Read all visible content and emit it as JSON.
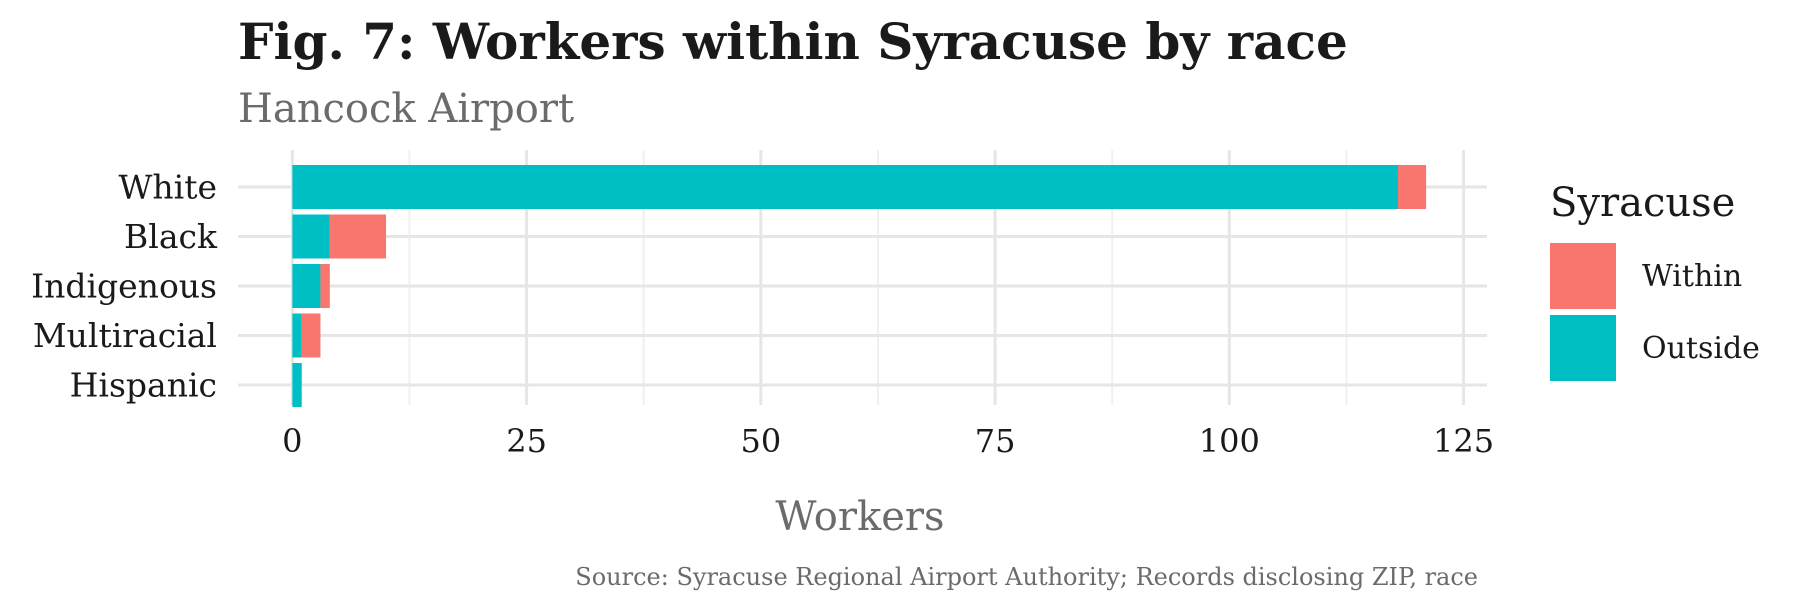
{
  "chart_data": {
    "type": "bar",
    "orientation": "horizontal",
    "stacked": true,
    "title": "Fig. 7: Workers within Syracuse by race",
    "subtitle": "Hancock Airport",
    "xlabel": "Workers",
    "ylabel": "",
    "caption": "Source: Syracuse Regional Airport Authority; Records disclosing ZIP, race",
    "categories": [
      "White",
      "Black",
      "Indigenous",
      "Multiracial",
      "Hispanic"
    ],
    "series": [
      {
        "name": "Outside",
        "color": "#00BFC4",
        "values": [
          118,
          4,
          3,
          1,
          1
        ]
      },
      {
        "name": "Within",
        "color": "#F8766D",
        "values": [
          3,
          6,
          1,
          2,
          0
        ]
      }
    ],
    "xlim": [
      -5.8,
      127.5
    ],
    "xticks": [
      0,
      25,
      50,
      75,
      100,
      125
    ],
    "grid": true,
    "legend": {
      "title": "Syracuse",
      "position": "right",
      "entries": [
        {
          "label": "Within",
          "color": "#F8766D"
        },
        {
          "label": "Outside",
          "color": "#00BFC4"
        }
      ]
    }
  }
}
